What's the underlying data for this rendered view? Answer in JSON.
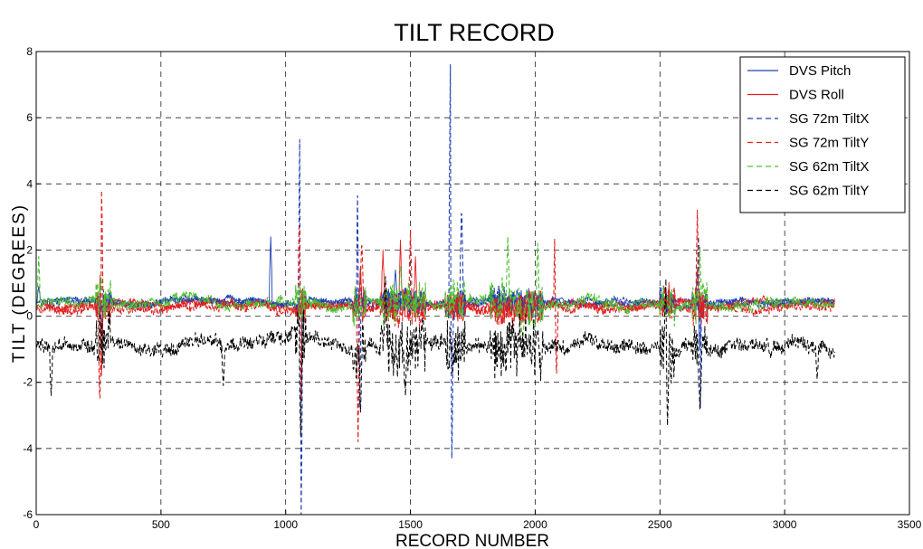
{
  "chart_data": {
    "type": "line",
    "title": "TILT RECORD",
    "xlabel": "RECORD NUMBER",
    "ylabel": "TILT (DEGREES)",
    "xlim": [
      0,
      3500
    ],
    "ylim": [
      -6,
      8
    ],
    "xticks": [
      0,
      500,
      1000,
      1500,
      2000,
      2500,
      3000,
      3500
    ],
    "yticks": [
      -6,
      -4,
      -2,
      0,
      2,
      4,
      6,
      8
    ],
    "grid": true,
    "legend_position": "top-right",
    "x_range": [
      0,
      3200
    ],
    "series": [
      {
        "name": "DVS Pitch",
        "color": "#1f3fb0",
        "style": "solid",
        "baseline": 0.45,
        "noise": 0.12,
        "stroke_width": 0.9,
        "events": [
          {
            "x": 10,
            "v": 0.9
          },
          {
            "x": 260,
            "v": -0.6
          },
          {
            "x": 940,
            "v": 2.4
          },
          {
            "x": 1300,
            "v": 1.2
          },
          {
            "x": 1440,
            "v": 1.4
          },
          {
            "x": 2660,
            "v": -1.0
          }
        ]
      },
      {
        "name": "DVS Roll",
        "color": "#e02020",
        "style": "solid",
        "baseline": 0.3,
        "noise": 0.18,
        "stroke_width": 0.9,
        "events": [
          {
            "x": 258,
            "v": 1.5
          },
          {
            "x": 262,
            "v": -1.8
          },
          {
            "x": 1300,
            "v": 1.5
          },
          {
            "x": 1390,
            "v": 2.0
          },
          {
            "x": 1460,
            "v": 2.3
          },
          {
            "x": 1520,
            "v": 1.8
          },
          {
            "x": 2650,
            "v": 1.4
          }
        ]
      },
      {
        "name": "SG 72m TiltX",
        "color": "#1f3fb0",
        "style": "dashed",
        "baseline": 0.4,
        "noise": 0.15,
        "stroke_width": 1.1,
        "events": [
          {
            "x": 1058,
            "v": 6.9
          },
          {
            "x": 1062,
            "v": -6.0
          },
          {
            "x": 1290,
            "v": 4.8
          },
          {
            "x": 1295,
            "v": -3.2
          },
          {
            "x": 1660,
            "v": 7.6
          },
          {
            "x": 1666,
            "v": -4.3
          },
          {
            "x": 1705,
            "v": 3.5
          },
          {
            "x": 2660,
            "v": -3.7
          },
          {
            "x": 2655,
            "v": 2.7
          }
        ]
      },
      {
        "name": "SG 72m TiltY",
        "color": "#e02020",
        "style": "dashed",
        "baseline": 0.3,
        "noise": 0.18,
        "stroke_width": 1.1,
        "events": [
          {
            "x": 262,
            "v": 3.8
          },
          {
            "x": 255,
            "v": -2.9
          },
          {
            "x": 1060,
            "v": -3.7
          },
          {
            "x": 1055,
            "v": 3.1
          },
          {
            "x": 1290,
            "v": -3.8
          },
          {
            "x": 1305,
            "v": 2.4
          },
          {
            "x": 1500,
            "v": 2.6
          },
          {
            "x": 2080,
            "v": 3.0
          },
          {
            "x": 2085,
            "v": -2.0
          },
          {
            "x": 2650,
            "v": 3.2
          }
        ]
      },
      {
        "name": "SG 62m TiltX",
        "color": "#4cc030",
        "style": "dashed",
        "baseline": 0.35,
        "noise": 0.22,
        "stroke_width": 1.1,
        "events": [
          {
            "x": 10,
            "v": 1.8
          },
          {
            "x": 260,
            "v": 1.2
          },
          {
            "x": 1460,
            "v": 1.5
          },
          {
            "x": 1890,
            "v": 2.4
          },
          {
            "x": 1950,
            "v": -0.7
          },
          {
            "x": 2010,
            "v": 2.2
          },
          {
            "x": 2660,
            "v": 2.1
          }
        ]
      },
      {
        "name": "SG 62m TiltY",
        "color": "#000000",
        "style": "dashed",
        "baseline": -0.85,
        "noise": 0.32,
        "stroke_width": 1.0,
        "events": [
          {
            "x": 60,
            "v": -2.4
          },
          {
            "x": 750,
            "v": -2.1
          },
          {
            "x": 1060,
            "v": -3.6
          },
          {
            "x": 1300,
            "v": -2.9
          },
          {
            "x": 1400,
            "v": 1.2
          },
          {
            "x": 1480,
            "v": -2.4
          },
          {
            "x": 2525,
            "v": 1.5
          },
          {
            "x": 2530,
            "v": -3.3
          },
          {
            "x": 2660,
            "v": -2.8
          },
          {
            "x": 3130,
            "v": -1.9
          }
        ]
      }
    ]
  }
}
